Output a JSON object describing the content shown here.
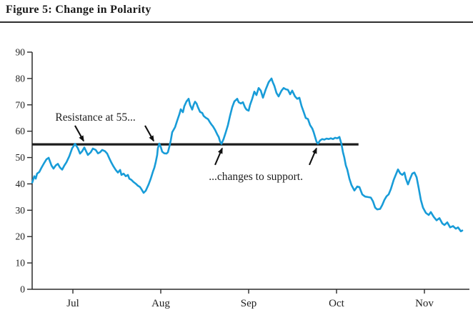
{
  "figure": {
    "title": "Figure 5: Change in Polarity"
  },
  "chart_data": {
    "type": "line",
    "title": "Figure 5: Change in Polarity",
    "xlabel": "",
    "ylabel": "",
    "ylim": [
      0,
      90
    ],
    "xlim": [
      0.537,
      5.52
    ],
    "grid": false,
    "legend": "none",
    "y_ticks": [
      0,
      10,
      20,
      30,
      40,
      50,
      60,
      70,
      80,
      90
    ],
    "x_ticks": [
      {
        "pos": 1,
        "label": "Jul"
      },
      {
        "pos": 2,
        "label": "Aug"
      },
      {
        "pos": 3,
        "label": "Sep"
      },
      {
        "pos": 4,
        "label": "Oct"
      },
      {
        "pos": 5,
        "label": "Nov"
      }
    ],
    "line_color": "#189CD8",
    "level_line": {
      "value": 55,
      "x_start": 0.537,
      "x_end": 4.25,
      "color": "#1c1c1c"
    },
    "annotations": [
      {
        "id": "resistance",
        "text": "Resistance at 55...",
        "x": 0.8,
        "y": 64.0,
        "anchor": "start"
      },
      {
        "id": "support",
        "text": "...changes to support.",
        "x": 3.082,
        "y": 41.5,
        "anchor": "middle"
      }
    ],
    "arrows": [
      {
        "from": [
          1.024,
          62.1
        ],
        "to": [
          1.122,
          56.3
        ]
      },
      {
        "from": [
          1.821,
          62.1
        ],
        "to": [
          1.919,
          56.3
        ]
      },
      {
        "from": [
          2.618,
          47.2
        ],
        "to": [
          2.699,
          53.5
        ]
      },
      {
        "from": [
          3.691,
          47.2
        ],
        "to": [
          3.772,
          53.5
        ]
      }
    ],
    "series": [
      {
        "name": "price",
        "points": [
          [
            0.537,
            40.5
          ],
          [
            0.561,
            42.9
          ],
          [
            0.577,
            42.0
          ],
          [
            0.593,
            43.9
          ],
          [
            0.618,
            44.5
          ],
          [
            0.642,
            46.1
          ],
          [
            0.675,
            48.0
          ],
          [
            0.699,
            49.3
          ],
          [
            0.724,
            49.9
          ],
          [
            0.756,
            47.0
          ],
          [
            0.78,
            45.8
          ],
          [
            0.805,
            47.0
          ],
          [
            0.829,
            47.6
          ],
          [
            0.854,
            46.2
          ],
          [
            0.878,
            45.4
          ],
          [
            0.902,
            46.9
          ],
          [
            0.927,
            48.2
          ],
          [
            0.959,
            50.5
          ],
          [
            0.992,
            53.5
          ],
          [
            1.024,
            55.2
          ],
          [
            1.057,
            53.5
          ],
          [
            1.081,
            51.5
          ],
          [
            1.106,
            52.4
          ],
          [
            1.13,
            53.8
          ],
          [
            1.171,
            51.0
          ],
          [
            1.203,
            52.0
          ],
          [
            1.228,
            53.4
          ],
          [
            1.26,
            52.9
          ],
          [
            1.285,
            51.6
          ],
          [
            1.309,
            52.0
          ],
          [
            1.333,
            52.9
          ],
          [
            1.366,
            52.4
          ],
          [
            1.39,
            51.5
          ],
          [
            1.415,
            49.7
          ],
          [
            1.439,
            48.0
          ],
          [
            1.463,
            46.6
          ],
          [
            1.488,
            45.3
          ],
          [
            1.512,
            44.3
          ],
          [
            1.537,
            45.3
          ],
          [
            1.553,
            43.4
          ],
          [
            1.577,
            43.9
          ],
          [
            1.602,
            42.9
          ],
          [
            1.626,
            43.4
          ],
          [
            1.642,
            42.0
          ],
          [
            1.667,
            41.5
          ],
          [
            1.691,
            40.7
          ],
          [
            1.715,
            40.1
          ],
          [
            1.74,
            39.3
          ],
          [
            1.764,
            38.8
          ],
          [
            1.78,
            38.0
          ],
          [
            1.805,
            36.6
          ],
          [
            1.829,
            37.4
          ],
          [
            1.862,
            39.8
          ],
          [
            1.886,
            42.0
          ],
          [
            1.911,
            44.7
          ],
          [
            1.927,
            46.1
          ],
          [
            1.943,
            48.3
          ],
          [
            1.959,
            51.0
          ],
          [
            1.967,
            53.5
          ],
          [
            1.984,
            55.3
          ],
          [
            2.0,
            54.0
          ],
          [
            2.016,
            52.2
          ],
          [
            2.041,
            51.6
          ],
          [
            2.065,
            51.5
          ],
          [
            2.081,
            52.0
          ],
          [
            2.098,
            54.2
          ],
          [
            2.114,
            56.5
          ],
          [
            2.13,
            59.6
          ],
          [
            2.163,
            61.5
          ],
          [
            2.187,
            64.0
          ],
          [
            2.211,
            66.4
          ],
          [
            2.228,
            68.3
          ],
          [
            2.252,
            67.2
          ],
          [
            2.268,
            69.5
          ],
          [
            2.293,
            71.3
          ],
          [
            2.317,
            72.3
          ],
          [
            2.333,
            70.0
          ],
          [
            2.358,
            68.2
          ],
          [
            2.374,
            70.0
          ],
          [
            2.39,
            71.2
          ],
          [
            2.407,
            70.5
          ],
          [
            2.423,
            69.1
          ],
          [
            2.447,
            67.3
          ],
          [
            2.472,
            66.9
          ],
          [
            2.488,
            65.8
          ],
          [
            2.512,
            65.1
          ],
          [
            2.537,
            64.6
          ],
          [
            2.561,
            63.3
          ],
          [
            2.577,
            62.5
          ],
          [
            2.593,
            61.9
          ],
          [
            2.618,
            60.5
          ],
          [
            2.642,
            58.8
          ],
          [
            2.659,
            57.8
          ],
          [
            2.675,
            56.1
          ],
          [
            2.691,
            55.2
          ],
          [
            2.715,
            57.0
          ],
          [
            2.74,
            59.6
          ],
          [
            2.764,
            62.3
          ],
          [
            2.789,
            65.9
          ],
          [
            2.813,
            69.1
          ],
          [
            2.837,
            71.3
          ],
          [
            2.87,
            72.3
          ],
          [
            2.886,
            71.0
          ],
          [
            2.911,
            70.5
          ],
          [
            2.935,
            71.0
          ],
          [
            2.959,
            69.0
          ],
          [
            2.976,
            68.2
          ],
          [
            3.0,
            67.8
          ],
          [
            3.016,
            70.0
          ],
          [
            3.041,
            72.3
          ],
          [
            3.065,
            75.0
          ],
          [
            3.089,
            73.7
          ],
          [
            3.114,
            76.4
          ],
          [
            3.138,
            75.4
          ],
          [
            3.163,
            72.7
          ],
          [
            3.195,
            75.9
          ],
          [
            3.228,
            78.6
          ],
          [
            3.26,
            80.0
          ],
          [
            3.276,
            78.5
          ],
          [
            3.293,
            77.2
          ],
          [
            3.317,
            74.5
          ],
          [
            3.341,
            73.2
          ],
          [
            3.374,
            75.4
          ],
          [
            3.398,
            76.4
          ],
          [
            3.423,
            75.9
          ],
          [
            3.447,
            75.7
          ],
          [
            3.472,
            74.0
          ],
          [
            3.496,
            75.4
          ],
          [
            3.528,
            73.2
          ],
          [
            3.553,
            72.3
          ],
          [
            3.577,
            72.7
          ],
          [
            3.602,
            69.6
          ],
          [
            3.626,
            67.3
          ],
          [
            3.65,
            65.0
          ],
          [
            3.675,
            64.6
          ],
          [
            3.699,
            62.3
          ],
          [
            3.724,
            61.0
          ],
          [
            3.74,
            59.6
          ],
          [
            3.756,
            57.8
          ],
          [
            3.772,
            56.0
          ],
          [
            3.789,
            55.3
          ],
          [
            3.813,
            56.5
          ],
          [
            3.837,
            57.0
          ],
          [
            3.862,
            56.8
          ],
          [
            3.886,
            57.2
          ],
          [
            3.911,
            57.0
          ],
          [
            3.935,
            57.3
          ],
          [
            3.959,
            57.0
          ],
          [
            3.984,
            57.5
          ],
          [
            4.008,
            57.3
          ],
          [
            4.033,
            57.8
          ],
          [
            4.057,
            55.0
          ],
          [
            4.073,
            52.0
          ],
          [
            4.089,
            50.0
          ],
          [
            4.106,
            47.0
          ],
          [
            4.122,
            45.5
          ],
          [
            4.146,
            42.0
          ],
          [
            4.171,
            39.5
          ],
          [
            4.203,
            37.5
          ],
          [
            4.236,
            39.0
          ],
          [
            4.26,
            38.8
          ],
          [
            4.293,
            36.0
          ],
          [
            4.325,
            35.2
          ],
          [
            4.358,
            35.0
          ],
          [
            4.39,
            34.8
          ],
          [
            4.415,
            33.4
          ],
          [
            4.439,
            31.0
          ],
          [
            4.463,
            30.3
          ],
          [
            4.496,
            30.5
          ],
          [
            4.52,
            32.0
          ],
          [
            4.545,
            33.9
          ],
          [
            4.569,
            35.3
          ],
          [
            4.593,
            36.0
          ],
          [
            4.618,
            38.0
          ],
          [
            4.65,
            41.5
          ],
          [
            4.675,
            43.5
          ],
          [
            4.699,
            45.5
          ],
          [
            4.724,
            44.0
          ],
          [
            4.748,
            43.4
          ],
          [
            4.772,
            44.3
          ],
          [
            4.789,
            42.0
          ],
          [
            4.813,
            39.8
          ],
          [
            4.837,
            42.0
          ],
          [
            4.862,
            43.9
          ],
          [
            4.886,
            44.3
          ],
          [
            4.911,
            42.5
          ],
          [
            4.935,
            38.4
          ],
          [
            4.959,
            33.9
          ],
          [
            4.984,
            31.0
          ],
          [
            5.016,
            29.0
          ],
          [
            5.049,
            28.2
          ],
          [
            5.073,
            29.3
          ],
          [
            5.106,
            27.5
          ],
          [
            5.138,
            26.2
          ],
          [
            5.171,
            27.0
          ],
          [
            5.203,
            25.0
          ],
          [
            5.228,
            24.4
          ],
          [
            5.26,
            25.4
          ],
          [
            5.293,
            23.5
          ],
          [
            5.325,
            24.0
          ],
          [
            5.358,
            23.0
          ],
          [
            5.382,
            23.5
          ],
          [
            5.415,
            22.0
          ],
          [
            5.431,
            22.3
          ]
        ]
      }
    ]
  }
}
